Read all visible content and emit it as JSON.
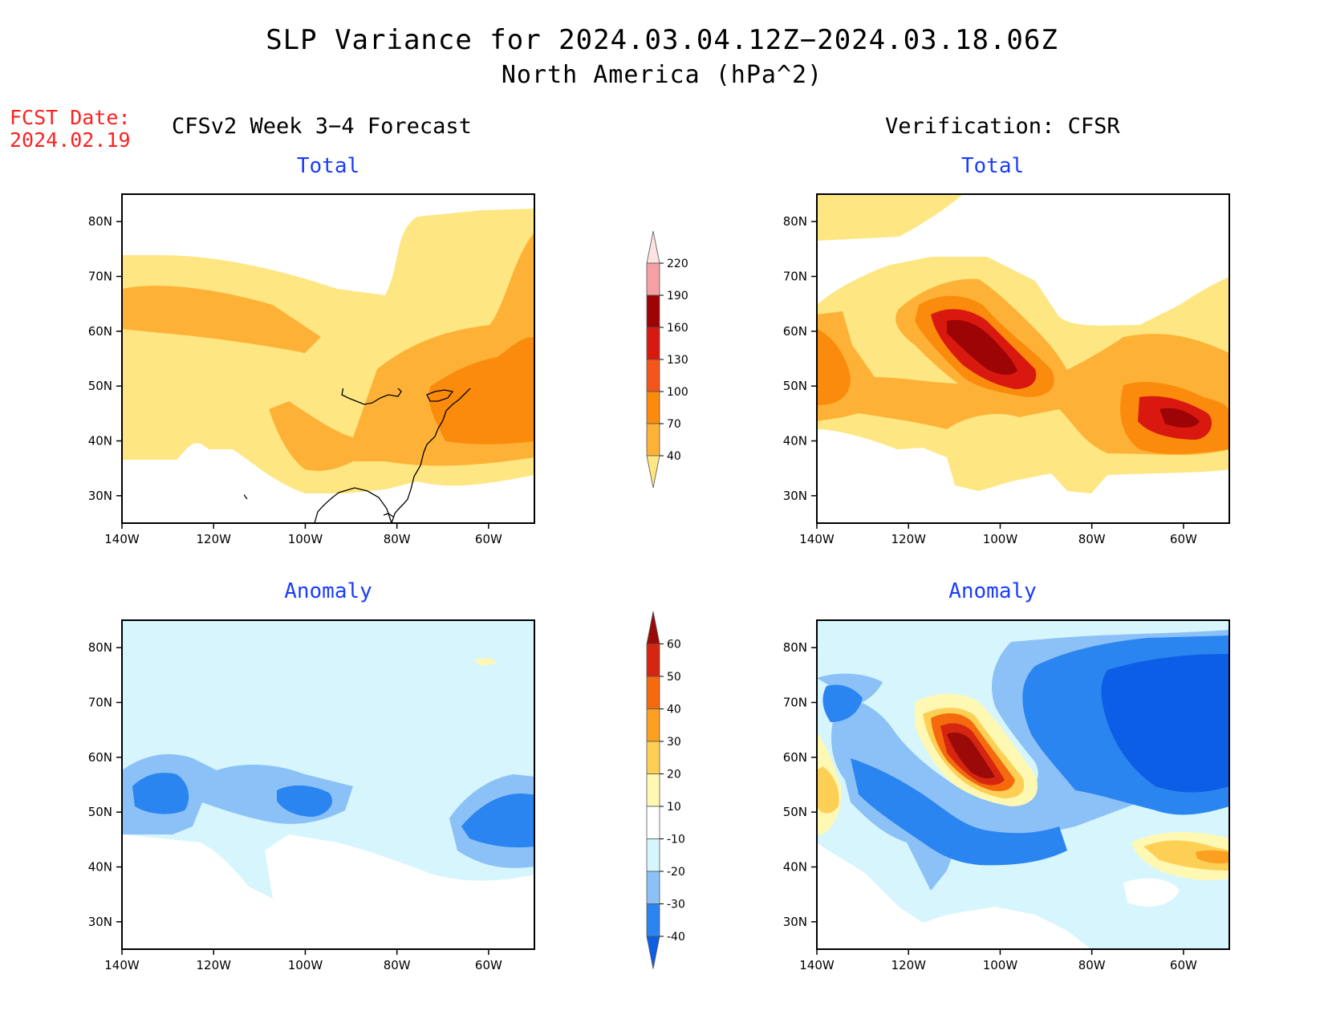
{
  "header": {
    "title": "SLP Variance for 2024.03.04.12Z−2024.03.18.06Z",
    "subtitle": "North America (hPa^2)"
  },
  "fcst_date": {
    "label": "FCST Date:",
    "value": "2024.02.19"
  },
  "columns": {
    "left": "CFSv2 Week 3−4 Forecast",
    "right": "Verification: CFSR"
  },
  "panels": {
    "fc_total": "Total",
    "vf_total": "Total",
    "fc_anom": "Anomaly",
    "vf_anom": "Anomaly"
  },
  "map_extent": {
    "lon": [
      -140,
      -50
    ],
    "lat": [
      25,
      85
    ]
  },
  "lat_ticks": [
    "80N",
    "70N",
    "60N",
    "50N",
    "40N",
    "30N"
  ],
  "lon_ticks": [
    "140W",
    "120W",
    "100W",
    "80W",
    "60W"
  ],
  "colorbar_total": {
    "levels": [
      "40",
      "70",
      "100",
      "130",
      "160",
      "190",
      "220"
    ],
    "colors": [
      "#fee682",
      "#fdb237",
      "#fa8b0c",
      "#f4551a",
      "#d9190f",
      "#9d0405",
      "#f4a0a4",
      "#fde2e2"
    ]
  },
  "colorbar_anom": {
    "levels": [
      "-40",
      "-30",
      "-20",
      "-10",
      "10",
      "20",
      "30",
      "40",
      "50",
      "60"
    ],
    "colors": [
      "#0d5ee6",
      "#2b85f0",
      "#8bc1f6",
      "#d6f5fd",
      "#ffffff",
      "#fff8b3",
      "#fdd055",
      "#fba020",
      "#f46a0d",
      "#d62510",
      "#9a0a08"
    ]
  }
}
